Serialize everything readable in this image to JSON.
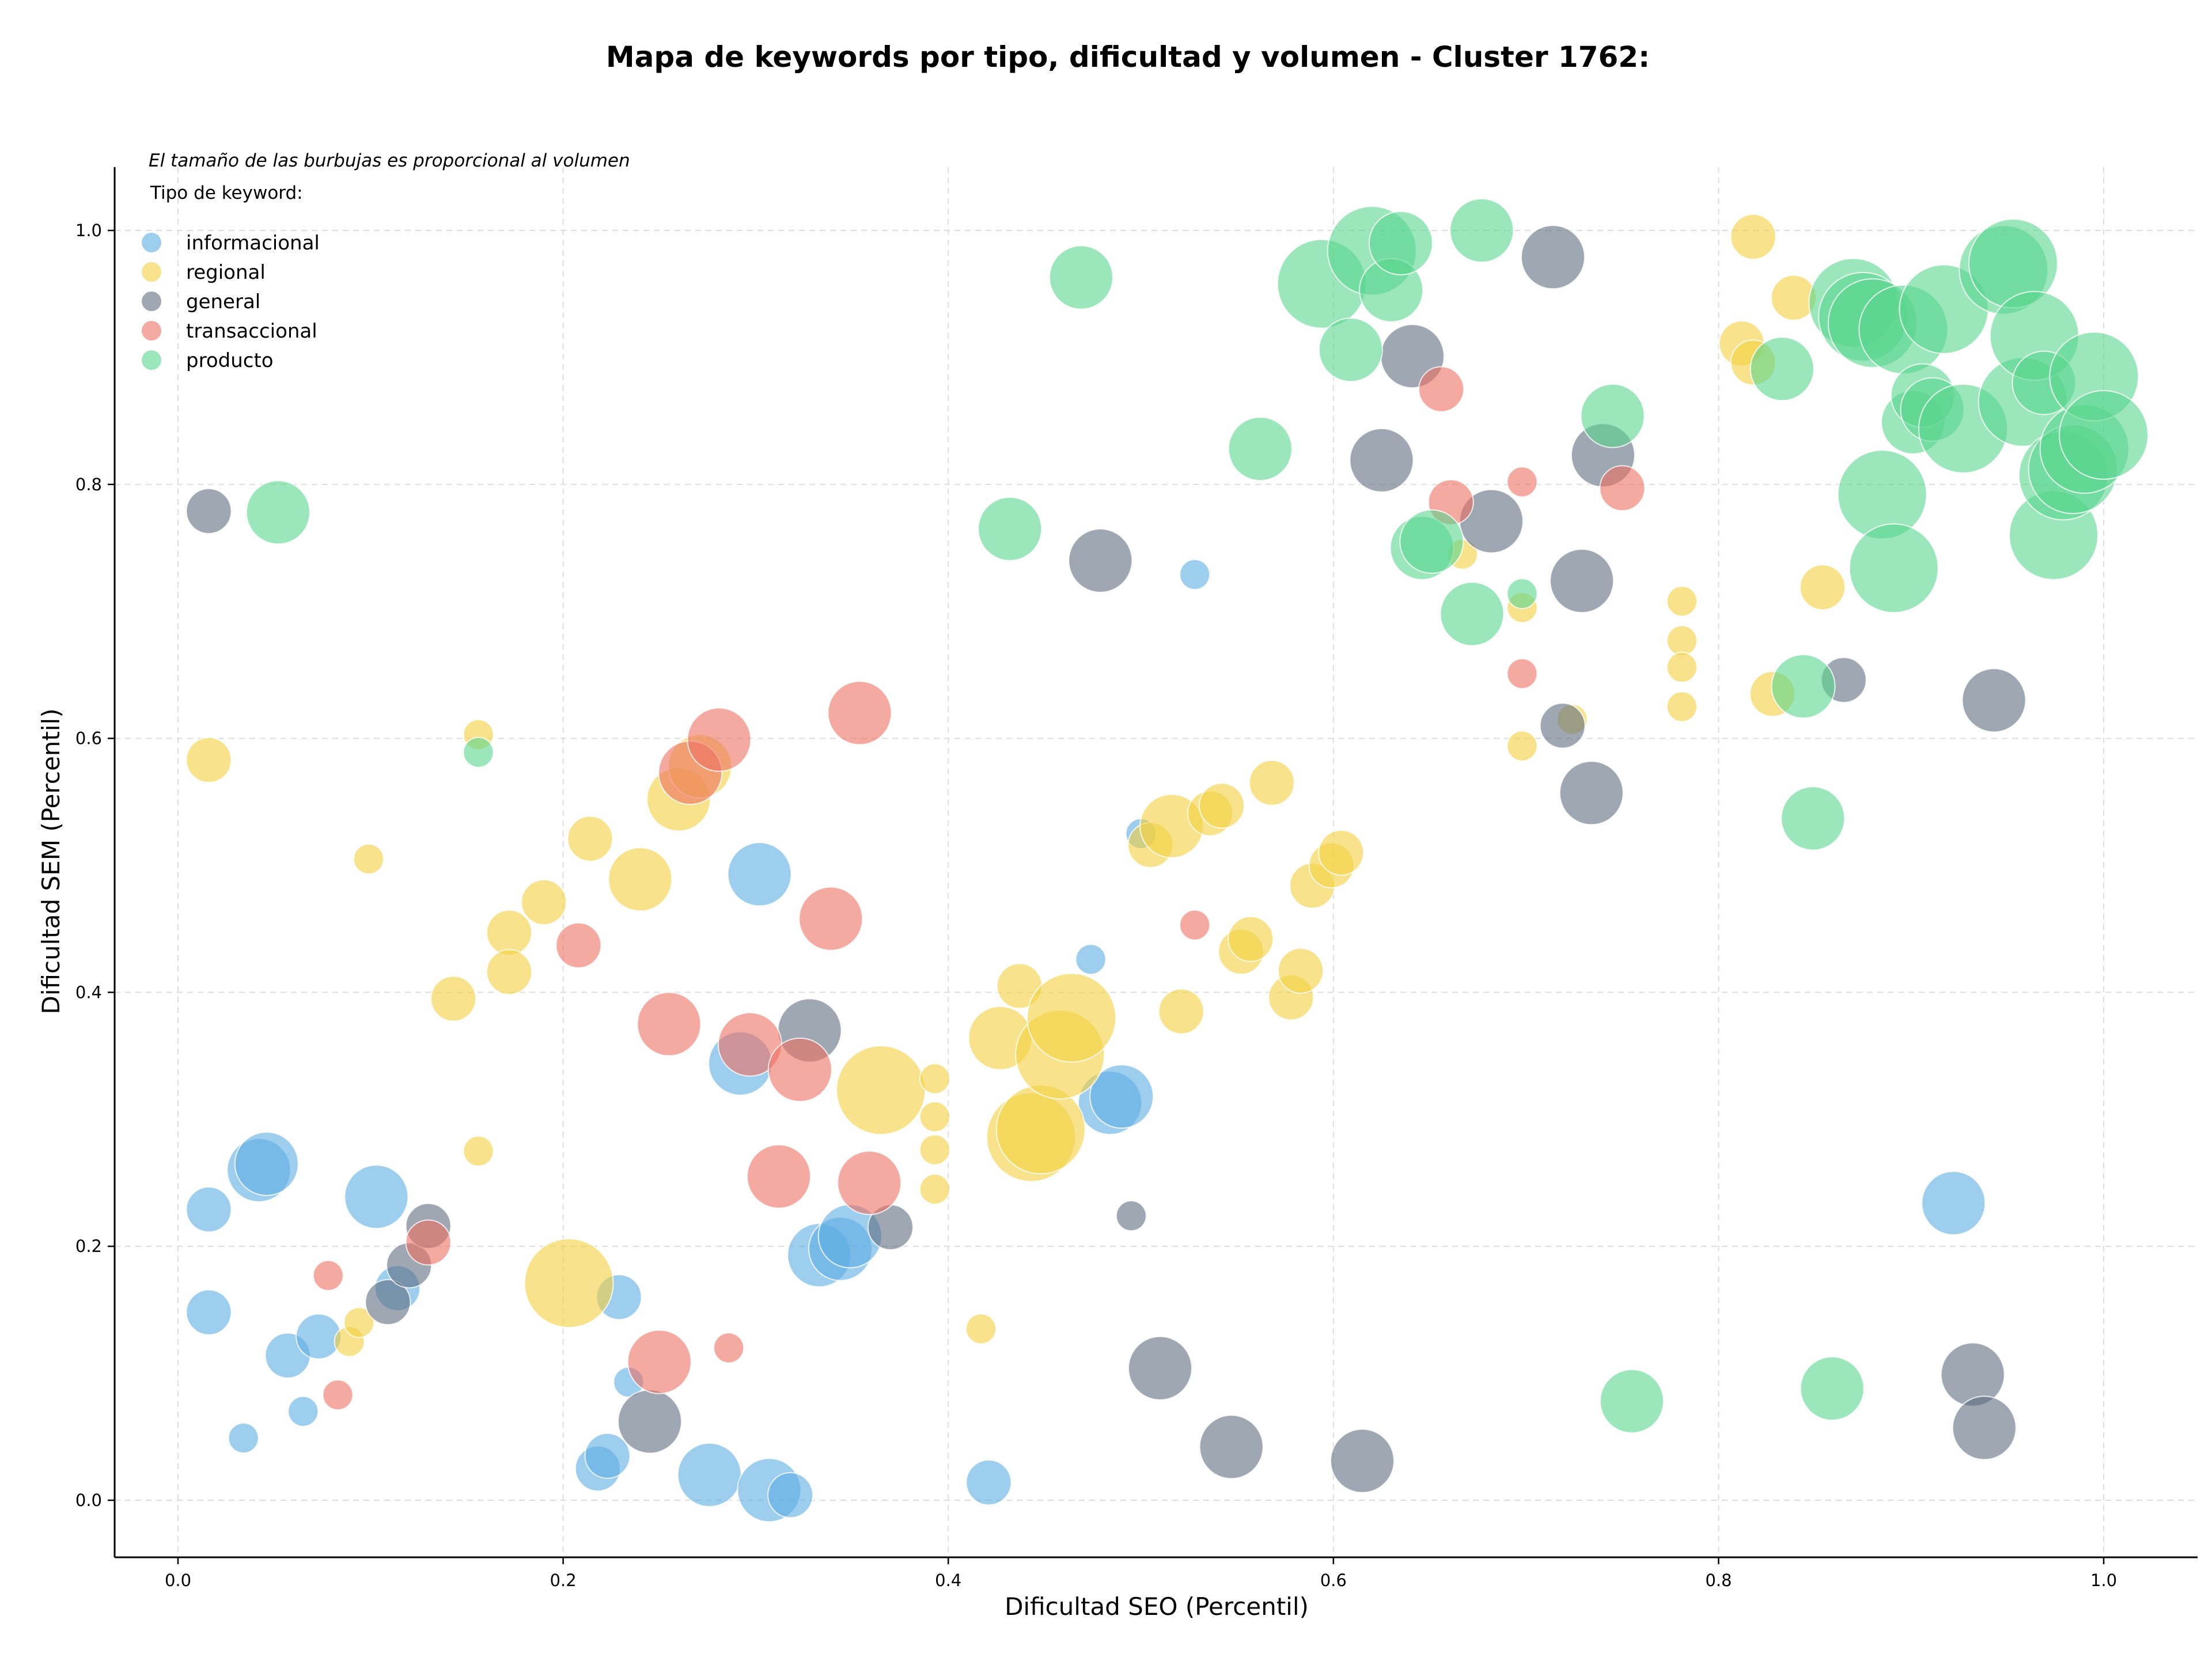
{
  "chart_data": {
    "type": "scatter",
    "title": "Mapa de keywords por tipo, dificultad y volumen - Cluster 1762:",
    "xlabel": "Dificultad SEO (Percentil)",
    "ylabel": "Dificultad SEM (Percentil)",
    "xlim": [
      -0.033,
      1.048
    ],
    "ylim": [
      -0.043,
      1.048
    ],
    "xticks": [
      "0.0",
      "0.2",
      "0.4",
      "0.6",
      "0.8",
      "1.0"
    ],
    "yticks": [
      "0.0",
      "0.2",
      "0.4",
      "0.6",
      "0.8",
      "1.0"
    ],
    "grid": true,
    "legend_placement": "top-left",
    "legend_title": "Tipo de keyword:",
    "size_note": "El tamaño de las burbujas es proporcional al volumen",
    "series": [
      {
        "name": "informacional",
        "color": "#5DADE2",
        "points": [
          [
            0.016,
            0.229,
            2
          ],
          [
            0.016,
            0.148,
            2
          ],
          [
            0.034,
            0.049,
            1
          ],
          [
            0.042,
            0.26,
            3
          ],
          [
            0.046,
            0.265,
            3
          ],
          [
            0.057,
            0.114,
            2
          ],
          [
            0.065,
            0.07,
            1
          ],
          [
            0.073,
            0.129,
            2
          ],
          [
            0.103,
            0.239,
            3
          ],
          [
            0.114,
            0.167,
            2
          ],
          [
            0.218,
            0.025,
            2
          ],
          [
            0.223,
            0.035,
            2
          ],
          [
            0.229,
            0.16,
            2
          ],
          [
            0.234,
            0.093,
            1
          ],
          [
            0.276,
            0.02,
            3
          ],
          [
            0.292,
            0.344,
            3
          ],
          [
            0.302,
            0.493,
            3
          ],
          [
            0.307,
            0.008,
            3
          ],
          [
            0.318,
            0.004,
            2
          ],
          [
            0.333,
            0.193,
            3
          ],
          [
            0.344,
            0.198,
            3
          ],
          [
            0.349,
            0.208,
            3
          ],
          [
            0.421,
            0.014,
            2
          ],
          [
            0.474,
            0.426,
            1
          ],
          [
            0.484,
            0.313,
            3
          ],
          [
            0.49,
            0.318,
            3
          ],
          [
            0.5,
            0.525,
            1
          ],
          [
            0.528,
            0.729,
            1
          ],
          [
            0.922,
            0.234,
            3
          ]
        ]
      },
      {
        "name": "regional",
        "color": "#F4D03F",
        "points": [
          [
            0.016,
            0.583,
            2
          ],
          [
            0.089,
            0.125,
            1
          ],
          [
            0.094,
            0.14,
            1
          ],
          [
            0.099,
            0.505,
            1
          ],
          [
            0.143,
            0.395,
            2
          ],
          [
            0.156,
            0.603,
            1
          ],
          [
            0.156,
            0.275,
            1
          ],
          [
            0.172,
            0.447,
            2
          ],
          [
            0.172,
            0.416,
            2
          ],
          [
            0.19,
            0.471,
            2
          ],
          [
            0.203,
            0.171,
            4
          ],
          [
            0.214,
            0.521,
            2
          ],
          [
            0.24,
            0.489,
            3
          ],
          [
            0.26,
            0.552,
            3
          ],
          [
            0.271,
            0.578,
            3
          ],
          [
            0.365,
            0.323,
            4
          ],
          [
            0.393,
            0.332,
            1
          ],
          [
            0.393,
            0.302,
            1
          ],
          [
            0.393,
            0.276,
            1
          ],
          [
            0.393,
            0.245,
            1
          ],
          [
            0.417,
            0.135,
            1
          ],
          [
            0.427,
            0.364,
            3
          ],
          [
            0.437,
            0.405,
            2
          ],
          [
            0.443,
            0.286,
            4
          ],
          [
            0.448,
            0.292,
            4
          ],
          [
            0.458,
            0.351,
            4
          ],
          [
            0.464,
            0.38,
            4
          ],
          [
            0.505,
            0.516,
            2
          ],
          [
            0.516,
            0.531,
            3
          ],
          [
            0.521,
            0.385,
            2
          ],
          [
            0.536,
            0.541,
            2
          ],
          [
            0.542,
            0.547,
            2
          ],
          [
            0.552,
            0.432,
            2
          ],
          [
            0.557,
            0.442,
            2
          ],
          [
            0.568,
            0.565,
            2
          ],
          [
            0.578,
            0.396,
            2
          ],
          [
            0.583,
            0.417,
            2
          ],
          [
            0.589,
            0.484,
            2
          ],
          [
            0.599,
            0.5,
            2
          ],
          [
            0.604,
            0.51,
            2
          ],
          [
            0.667,
            0.745,
            1
          ],
          [
            0.698,
            0.703,
            1
          ],
          [
            0.698,
            0.594,
            1
          ],
          [
            0.724,
            0.615,
            1
          ],
          [
            0.781,
            0.708,
            1
          ],
          [
            0.781,
            0.677,
            1
          ],
          [
            0.781,
            0.656,
            1
          ],
          [
            0.781,
            0.625,
            1
          ],
          [
            0.812,
            0.911,
            2
          ],
          [
            0.818,
            0.896,
            2
          ],
          [
            0.818,
            0.995,
            2
          ],
          [
            0.828,
            0.635,
            2
          ],
          [
            0.839,
            0.947,
            2
          ],
          [
            0.854,
            0.719,
            2
          ]
        ]
      },
      {
        "name": "general",
        "color": "#5D6D7E",
        "points": [
          [
            0.016,
            0.779,
            2
          ],
          [
            0.109,
            0.156,
            2
          ],
          [
            0.12,
            0.185,
            2
          ],
          [
            0.13,
            0.216,
            2
          ],
          [
            0.245,
            0.062,
            3
          ],
          [
            0.328,
            0.37,
            3
          ],
          [
            0.37,
            0.215,
            2
          ],
          [
            0.479,
            0.74,
            3
          ],
          [
            0.495,
            0.224,
            1
          ],
          [
            0.51,
            0.104,
            3
          ],
          [
            0.547,
            0.042,
            3
          ],
          [
            0.615,
            0.031,
            3
          ],
          [
            0.625,
            0.819,
            3
          ],
          [
            0.641,
            0.901,
            3
          ],
          [
            0.682,
            0.771,
            3
          ],
          [
            0.714,
            0.979,
            3
          ],
          [
            0.719,
            0.61,
            2
          ],
          [
            0.729,
            0.724,
            3
          ],
          [
            0.734,
            0.557,
            3
          ],
          [
            0.74,
            0.823,
            3
          ],
          [
            0.865,
            0.646,
            2
          ],
          [
            0.932,
            0.099,
            3
          ],
          [
            0.938,
            0.057,
            3
          ],
          [
            0.943,
            0.63,
            3
          ]
        ]
      },
      {
        "name": "transaccional",
        "color": "#EC7063",
        "points": [
          [
            0.078,
            0.177,
            1
          ],
          [
            0.083,
            0.083,
            1
          ],
          [
            0.13,
            0.203,
            2
          ],
          [
            0.208,
            0.437,
            2
          ],
          [
            0.25,
            0.109,
            3
          ],
          [
            0.255,
            0.375,
            3
          ],
          [
            0.266,
            0.573,
            3
          ],
          [
            0.281,
            0.599,
            3
          ],
          [
            0.286,
            0.12,
            1
          ],
          [
            0.297,
            0.359,
            3
          ],
          [
            0.312,
            0.255,
            3
          ],
          [
            0.323,
            0.339,
            3
          ],
          [
            0.339,
            0.458,
            3
          ],
          [
            0.354,
            0.62,
            3
          ],
          [
            0.359,
            0.25,
            3
          ],
          [
            0.528,
            0.453,
            1
          ],
          [
            0.656,
            0.875,
            2
          ],
          [
            0.661,
            0.786,
            2
          ],
          [
            0.698,
            0.802,
            1
          ],
          [
            0.698,
            0.651,
            1
          ],
          [
            0.75,
            0.797,
            2
          ]
        ]
      },
      {
        "name": "producto",
        "color": "#58D68D",
        "points": [
          [
            0.052,
            0.778,
            3
          ],
          [
            0.156,
            0.589,
            1
          ],
          [
            0.432,
            0.765,
            3
          ],
          [
            0.469,
            0.963,
            3
          ],
          [
            0.562,
            0.828,
            3
          ],
          [
            0.594,
            0.958,
            4
          ],
          [
            0.609,
            0.906,
            3
          ],
          [
            0.62,
            0.984,
            4
          ],
          [
            0.63,
            0.953,
            3
          ],
          [
            0.635,
            0.99,
            3
          ],
          [
            0.646,
            0.75,
            3
          ],
          [
            0.651,
            0.755,
            3
          ],
          [
            0.672,
            0.698,
            3
          ],
          [
            0.677,
            1.0,
            3
          ],
          [
            0.698,
            0.714,
            1
          ],
          [
            0.745,
            0.854,
            3
          ],
          [
            0.755,
            0.078,
            3
          ],
          [
            0.833,
            0.891,
            3
          ],
          [
            0.844,
            0.641,
            3
          ],
          [
            0.849,
            0.537,
            3
          ],
          [
            0.859,
            0.088,
            3
          ],
          [
            0.87,
            0.943,
            4
          ],
          [
            0.875,
            0.932,
            4
          ],
          [
            0.88,
            0.927,
            4
          ],
          [
            0.885,
            0.792,
            4
          ],
          [
            0.891,
            0.734,
            4
          ],
          [
            0.896,
            0.922,
            4
          ],
          [
            0.901,
            0.849,
            3
          ],
          [
            0.906,
            0.87,
            3
          ],
          [
            0.911,
            0.859,
            3
          ],
          [
            0.917,
            0.938,
            4
          ],
          [
            0.927,
            0.844,
            4
          ],
          [
            0.948,
            0.969,
            4
          ],
          [
            0.953,
            0.974,
            4
          ],
          [
            0.958,
            0.865,
            4
          ],
          [
            0.964,
            0.917,
            4
          ],
          [
            0.969,
            0.88,
            3
          ],
          [
            0.974,
            0.76,
            4
          ],
          [
            0.979,
            0.807,
            4
          ],
          [
            0.984,
            0.812,
            4
          ],
          [
            0.99,
            0.828,
            4
          ],
          [
            0.995,
            0.885,
            4
          ],
          [
            1.0,
            0.839,
            4
          ]
        ]
      }
    ]
  }
}
